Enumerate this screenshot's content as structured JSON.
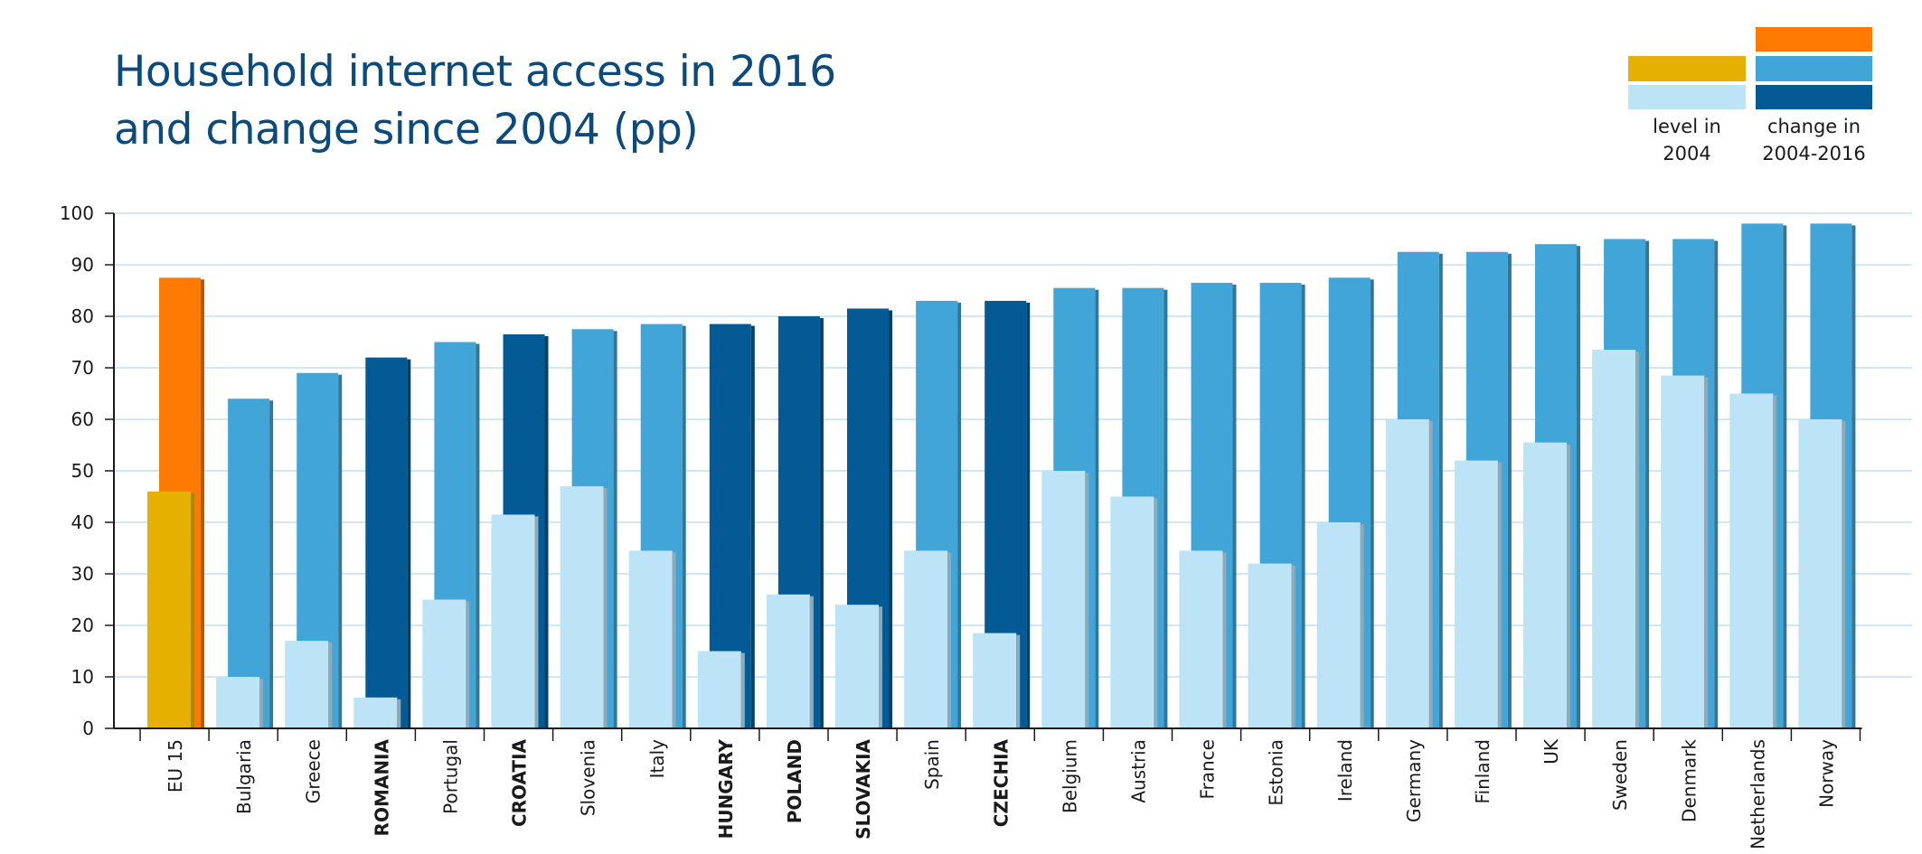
{
  "chart_data": {
    "type": "bar",
    "title_lines": [
      "Household internet access in 2016",
      "and change since 2004 (pp)"
    ],
    "xlabel": "",
    "ylabel": "",
    "ylim": [
      0,
      100
    ],
    "yticks": [
      0,
      10,
      20,
      30,
      40,
      50,
      60,
      70,
      80,
      90,
      100
    ],
    "grid": true,
    "categories": [
      "EU 15",
      "Bulgaria",
      "Greece",
      "ROMANIA",
      "Portugal",
      "CROATIA",
      "Slovenia",
      "Italy",
      "HUNGARY",
      "POLAND",
      "SLOVAKIA",
      "Spain",
      "CZECHIA",
      "Belgium",
      "Austria",
      "France",
      "Estonia",
      "Ireland",
      "Germany",
      "Finland",
      "UK",
      "Sweden",
      "Denmark",
      "Netherlands",
      "Norway"
    ],
    "bold_categories": [
      "ROMANIA",
      "CROATIA",
      "HUNGARY",
      "POLAND",
      "SLOVAKIA",
      "CZECHIA"
    ],
    "series": [
      {
        "key": "level_2004",
        "values": [
          46,
          10,
          17,
          6,
          25,
          41.5,
          47,
          34.5,
          15,
          26,
          24,
          34.5,
          18.5,
          50,
          45,
          34.5,
          32,
          40,
          60,
          52,
          55.5,
          73.5,
          68.5,
          65,
          60
        ]
      },
      {
        "key": "level_2016",
        "values": [
          87.5,
          64,
          69,
          72,
          75,
          76.5,
          77.5,
          78.5,
          78.5,
          80,
          81.5,
          83,
          83,
          85.5,
          85.5,
          86.5,
          86.5,
          87.5,
          92.5,
          92.5,
          94,
          95,
          95,
          98,
          98
        ]
      }
    ],
    "legend": {
      "position": "top-right",
      "groups": [
        {
          "label_lines": [
            "level in",
            "2004"
          ],
          "colors": [
            "#e6b000",
            "#bde3f7"
          ]
        },
        {
          "label_lines": [
            "change in",
            "2004-2016"
          ],
          "colors": [
            "#ff7a00",
            "#42a5d8",
            "#035a94"
          ]
        }
      ]
    },
    "colors": {
      "eu_2004": "#e6b000",
      "eu_change": "#ff7a00",
      "level_2004": "#bde3f7",
      "change": "#42a5d8",
      "change_highlight": "#035a94",
      "title": "#0b4a7d",
      "grid": "#bfe0ee"
    }
  }
}
